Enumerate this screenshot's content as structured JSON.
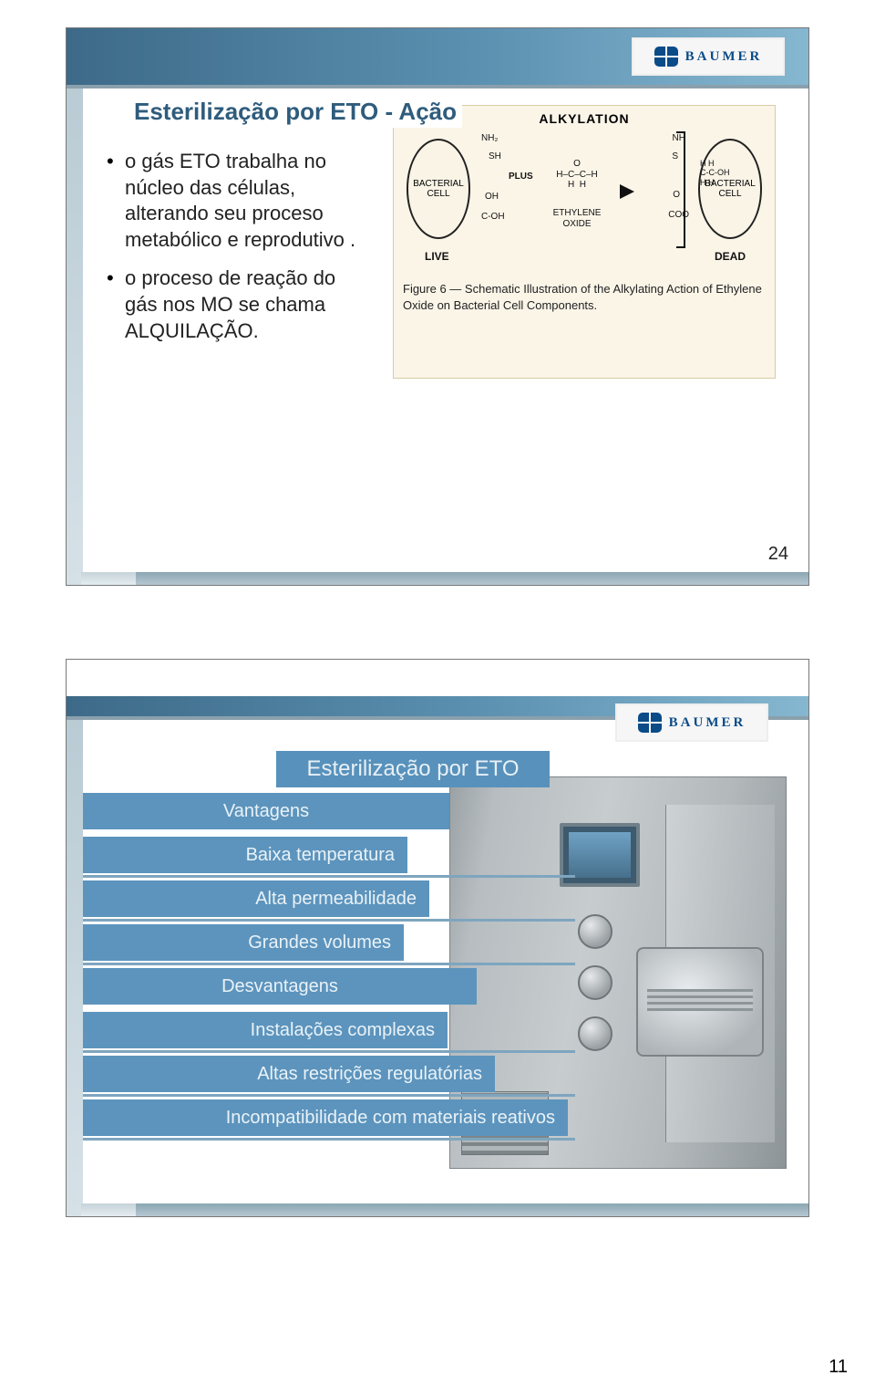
{
  "page": {
    "number": "11"
  },
  "logo": {
    "text": "BAUMER"
  },
  "slide1": {
    "title": "Esterilização por ETO - Ação",
    "bullets": {
      "b1": "o gás ETO trabalha no núcleo das células, alterando seu proceso metabólico e reprodutivo .",
      "b2": "o proceso de reação do gás nos MO se chama ALQUILAÇÃO."
    },
    "figure": {
      "heading": "ALKYLATION",
      "cell_label": "BACTERIAL CELL",
      "live": "LIVE",
      "dead": "DEAD",
      "nh2": "NH₂",
      "sh": "SH",
      "oh": "OH",
      "coh": "C-OH",
      "plus": "PLUS",
      "eto_formula": "O\nH–C–C–H\nH  H",
      "eto_label": "ETHYLENE OXIDE",
      "nh_r": "NH",
      "s_r": "S",
      "o_r": "O",
      "coo_r": "COO",
      "chain": "H H\nC-C-OH\nH H",
      "caption": "Figure 6 — Schematic Illustration of the Alkylating Action of Ethylene Oxide on Bacterial Cell Components."
    },
    "page_num": "24"
  },
  "slide2": {
    "title": "Esterilização por ETO",
    "vantagens_heading": "Vantagens",
    "v1": "Baixa temperatura",
    "v2": "Alta permeabilidade",
    "v3": "Grandes volumes",
    "desvantagens_heading": "Desvantagens",
    "d1": "Instalações complexas",
    "d2": "Altas restrições regulatórias",
    "d3": "Incompatibilidade com materiais reativos"
  },
  "colors": {
    "header_grad_from": "#3d6a88",
    "header_grad_to": "#86b7d0",
    "title_text": "#2f5c7c",
    "label_bg": "#5c94bd",
    "label_text": "#eaf2f7",
    "figure_bg": "#fbf5e8",
    "machine_metal": "#b7bdc0"
  }
}
